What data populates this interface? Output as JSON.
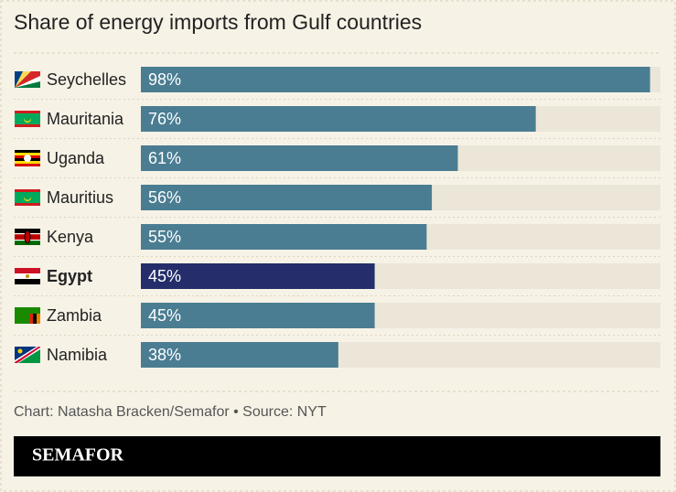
{
  "chart_data": {
    "type": "bar",
    "orientation": "horizontal",
    "title": "Share of energy imports from Gulf countries",
    "categories": [
      "Seychelles",
      "Mauritania",
      "Uganda",
      "Mauritius",
      "Kenya",
      "Egypt",
      "Zambia",
      "Namibia"
    ],
    "values": [
      98,
      76,
      61,
      56,
      55,
      45,
      45,
      38
    ],
    "value_labels": [
      "98%",
      "76%",
      "61%",
      "56%",
      "55%",
      "45%",
      "45%",
      "38%"
    ],
    "color": "#4a7d92",
    "colors": [
      "#4a7d92",
      "#4a7d92",
      "#4a7d92",
      "#4a7d92",
      "#4a7d92",
      "#252e6b",
      "#4a7d92",
      "#4a7d92"
    ],
    "xlim": [
      0,
      100
    ],
    "source": "Chart: Natasha Bracken/Semafor • Source: NYT",
    "brand": "SEMAFOR"
  }
}
